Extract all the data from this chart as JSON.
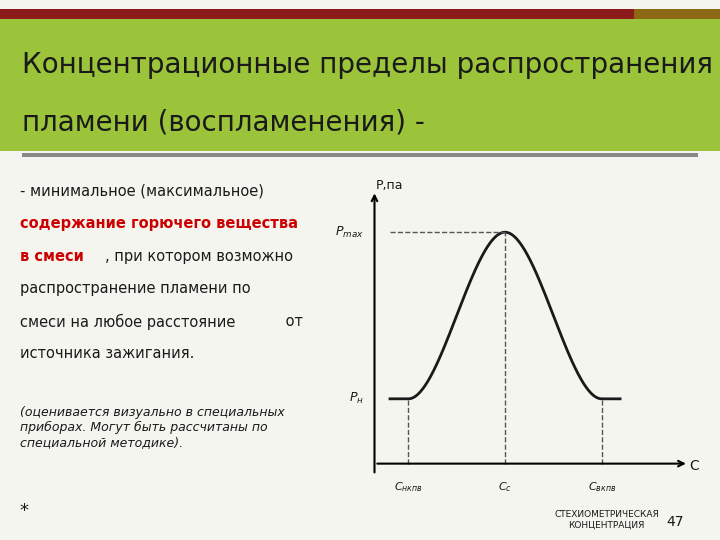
{
  "title_line1": "Концентрационные пределы распространения",
  "title_line2": "пламени (воспламенения) -",
  "title_bg_color": "#9bc43a",
  "title_font_color": "#1a1a1a",
  "header_bar_color": "#8B1A1A",
  "header_bar_color2": "#8B6914",
  "slide_bg": "#f5f5f0",
  "italic_text": "(оценивается визуально в специальных\nприборах. Могут быть рассчитаны по\nспециальной методике).",
  "star_text": "*",
  "page_number": "47",
  "curve_color": "#1a1a1a",
  "dashed_color": "#555555",
  "divider_color": "#888888",
  "c_nkpv": 1.5,
  "c_s": 3.5,
  "c_vkpv": 5.5,
  "p_n": 0.28,
  "p_max": 1.0
}
